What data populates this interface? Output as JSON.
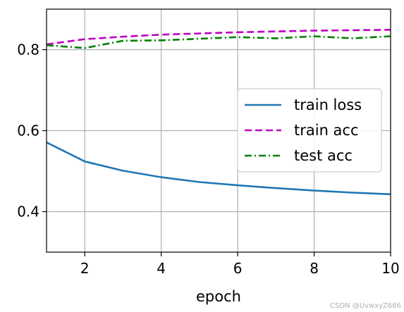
{
  "chart_data": {
    "type": "line",
    "title": "",
    "xlabel": "epoch",
    "ylabel": "",
    "xlim": [
      1,
      10
    ],
    "ylim": [
      0.3,
      0.9
    ],
    "xticks": [
      2,
      4,
      6,
      8,
      10
    ],
    "yticks": [
      0.4,
      0.6,
      0.8
    ],
    "xtick_labels": [
      "2",
      "4",
      "6",
      "8",
      "10"
    ],
    "ytick_labels": [
      "0.4",
      "0.6",
      "0.8"
    ],
    "grid": true,
    "legend_position": "center-right",
    "x": [
      1,
      2,
      3,
      4,
      5,
      6,
      7,
      8,
      9,
      10
    ],
    "series": [
      {
        "name": "train loss",
        "color": "#1f77b4",
        "style": "solid",
        "values": [
          0.571,
          0.524,
          0.501,
          0.485,
          0.473,
          0.465,
          0.458,
          0.452,
          0.447,
          0.443
        ]
      },
      {
        "name": "train acc",
        "color": "#bf00bf",
        "style": "dashed",
        "values": [
          0.813,
          0.826,
          0.832,
          0.837,
          0.84,
          0.843,
          0.845,
          0.847,
          0.848,
          0.849
        ]
      },
      {
        "name": "test acc",
        "color": "#008000",
        "style": "dashdot",
        "values": [
          0.811,
          0.804,
          0.822,
          0.823,
          0.827,
          0.831,
          0.828,
          0.833,
          0.828,
          0.833
        ]
      }
    ]
  },
  "watermark": "CSDN @UvwxyZ666"
}
